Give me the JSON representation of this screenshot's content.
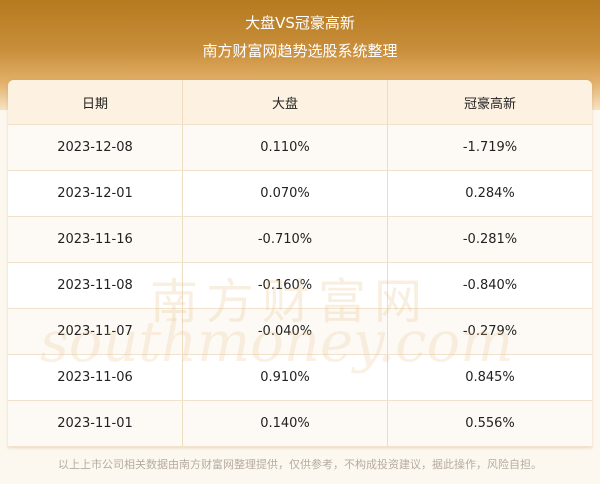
{
  "header": {
    "title": "大盘VS冠豪高新",
    "subtitle": "南方财富网趋势选股系统整理"
  },
  "table": {
    "columns": [
      "日期",
      "大盘",
      "冠豪高新"
    ],
    "rows": [
      [
        "2023-12-08",
        "0.110%",
        "-1.719%"
      ],
      [
        "2023-12-01",
        "0.070%",
        "0.284%"
      ],
      [
        "2023-11-16",
        "-0.710%",
        "-0.281%"
      ],
      [
        "2023-11-08",
        "-0.160%",
        "-0.840%"
      ],
      [
        "2023-11-07",
        "-0.040%",
        "-0.279%"
      ],
      [
        "2023-11-06",
        "0.910%",
        "0.845%"
      ],
      [
        "2023-11-01",
        "0.140%",
        "0.556%"
      ]
    ]
  },
  "watermark": {
    "cn": "南方财富网",
    "en": "southmoney.com"
  },
  "footer": "以上上市公司相关数据由南方财富网整理提供，仅供参考，不构成投资建议，据此操作，风险自担。"
}
